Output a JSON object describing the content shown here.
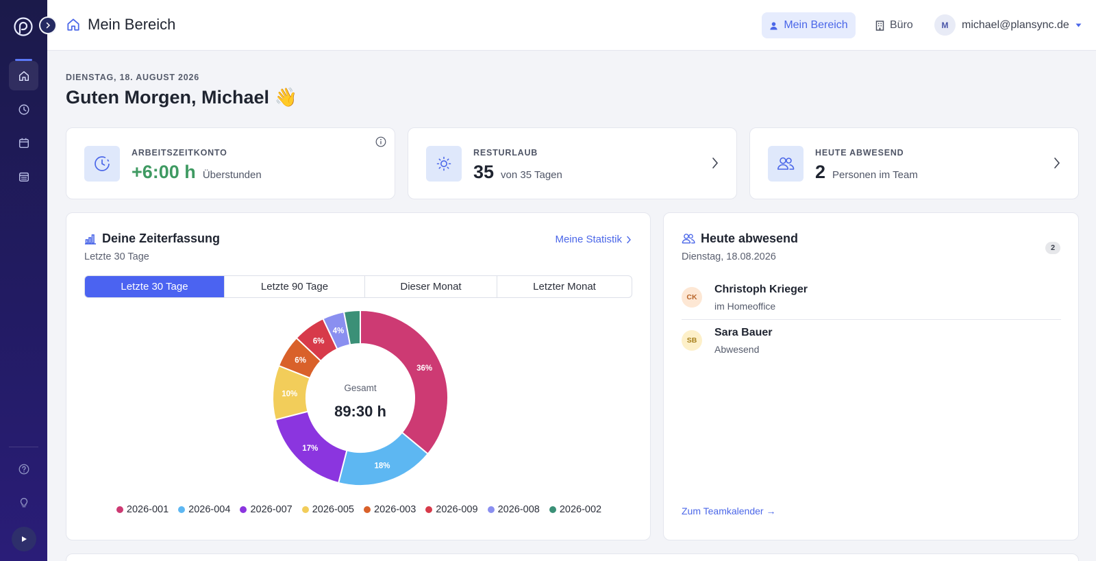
{
  "topbar": {
    "title": "Mein Bereich",
    "nav_active": "Mein Bereich",
    "nav_office": "Büro",
    "user_initial": "M",
    "user_email": "michael@plansync.de"
  },
  "header": {
    "date": "DIENSTAG, 18. AUGUST 2026",
    "greeting": "Guten Morgen, Michael 👋"
  },
  "stats": {
    "arbeitszeit": {
      "label": "ARBEITSZEITKONTO",
      "value": "+6:00 h",
      "sub": "Überstunden"
    },
    "urlaub": {
      "label": "RESTURLAUB",
      "value": "35",
      "sub": "von 35 Tagen"
    },
    "abwesend": {
      "label": "HEUTE ABWESEND",
      "value": "2",
      "sub": "Personen im Team"
    }
  },
  "zeiterfassung": {
    "title": "Deine Zeiterfassung",
    "subtitle": "Letzte 30 Tage",
    "link": "Meine Statistik",
    "tabs": [
      "Letzte 30 Tage",
      "Letzte 90 Tage",
      "Dieser Monat",
      "Letzter Monat"
    ],
    "center_label": "Gesamt",
    "center_value": "89:30 h"
  },
  "chart_data": {
    "type": "pie",
    "categories": [
      "2026-001",
      "2026-004",
      "2026-007",
      "2026-005",
      "2026-003",
      "2026-009",
      "2026-008",
      "2026-002"
    ],
    "values": [
      36,
      18,
      17,
      10,
      6,
      6,
      4,
      3
    ],
    "labels": [
      "36%",
      "18%",
      "17%",
      "10%",
      "6%",
      "6%",
      "4%",
      ""
    ],
    "colors": [
      "#cd3a73",
      "#5db7f2",
      "#8b35df",
      "#f2cd5a",
      "#d9612a",
      "#d73a4a",
      "#8a8ff0",
      "#3b9077"
    ],
    "legend": "bottom",
    "donut": true
  },
  "abwesend_card": {
    "title": "Heute abwesend",
    "date": "Dienstag, 18.08.2026",
    "count": "2",
    "people": [
      {
        "initials": "CK",
        "name": "Christoph Krieger",
        "status": "im Homeoffice",
        "bg": "#fde7d4",
        "fg": "#b8652b"
      },
      {
        "initials": "SB",
        "name": "Sara Bauer",
        "status": "Abwesend",
        "bg": "#fdf0c9",
        "fg": "#a7801c"
      }
    ],
    "link": "Zum Teamkalender →"
  }
}
